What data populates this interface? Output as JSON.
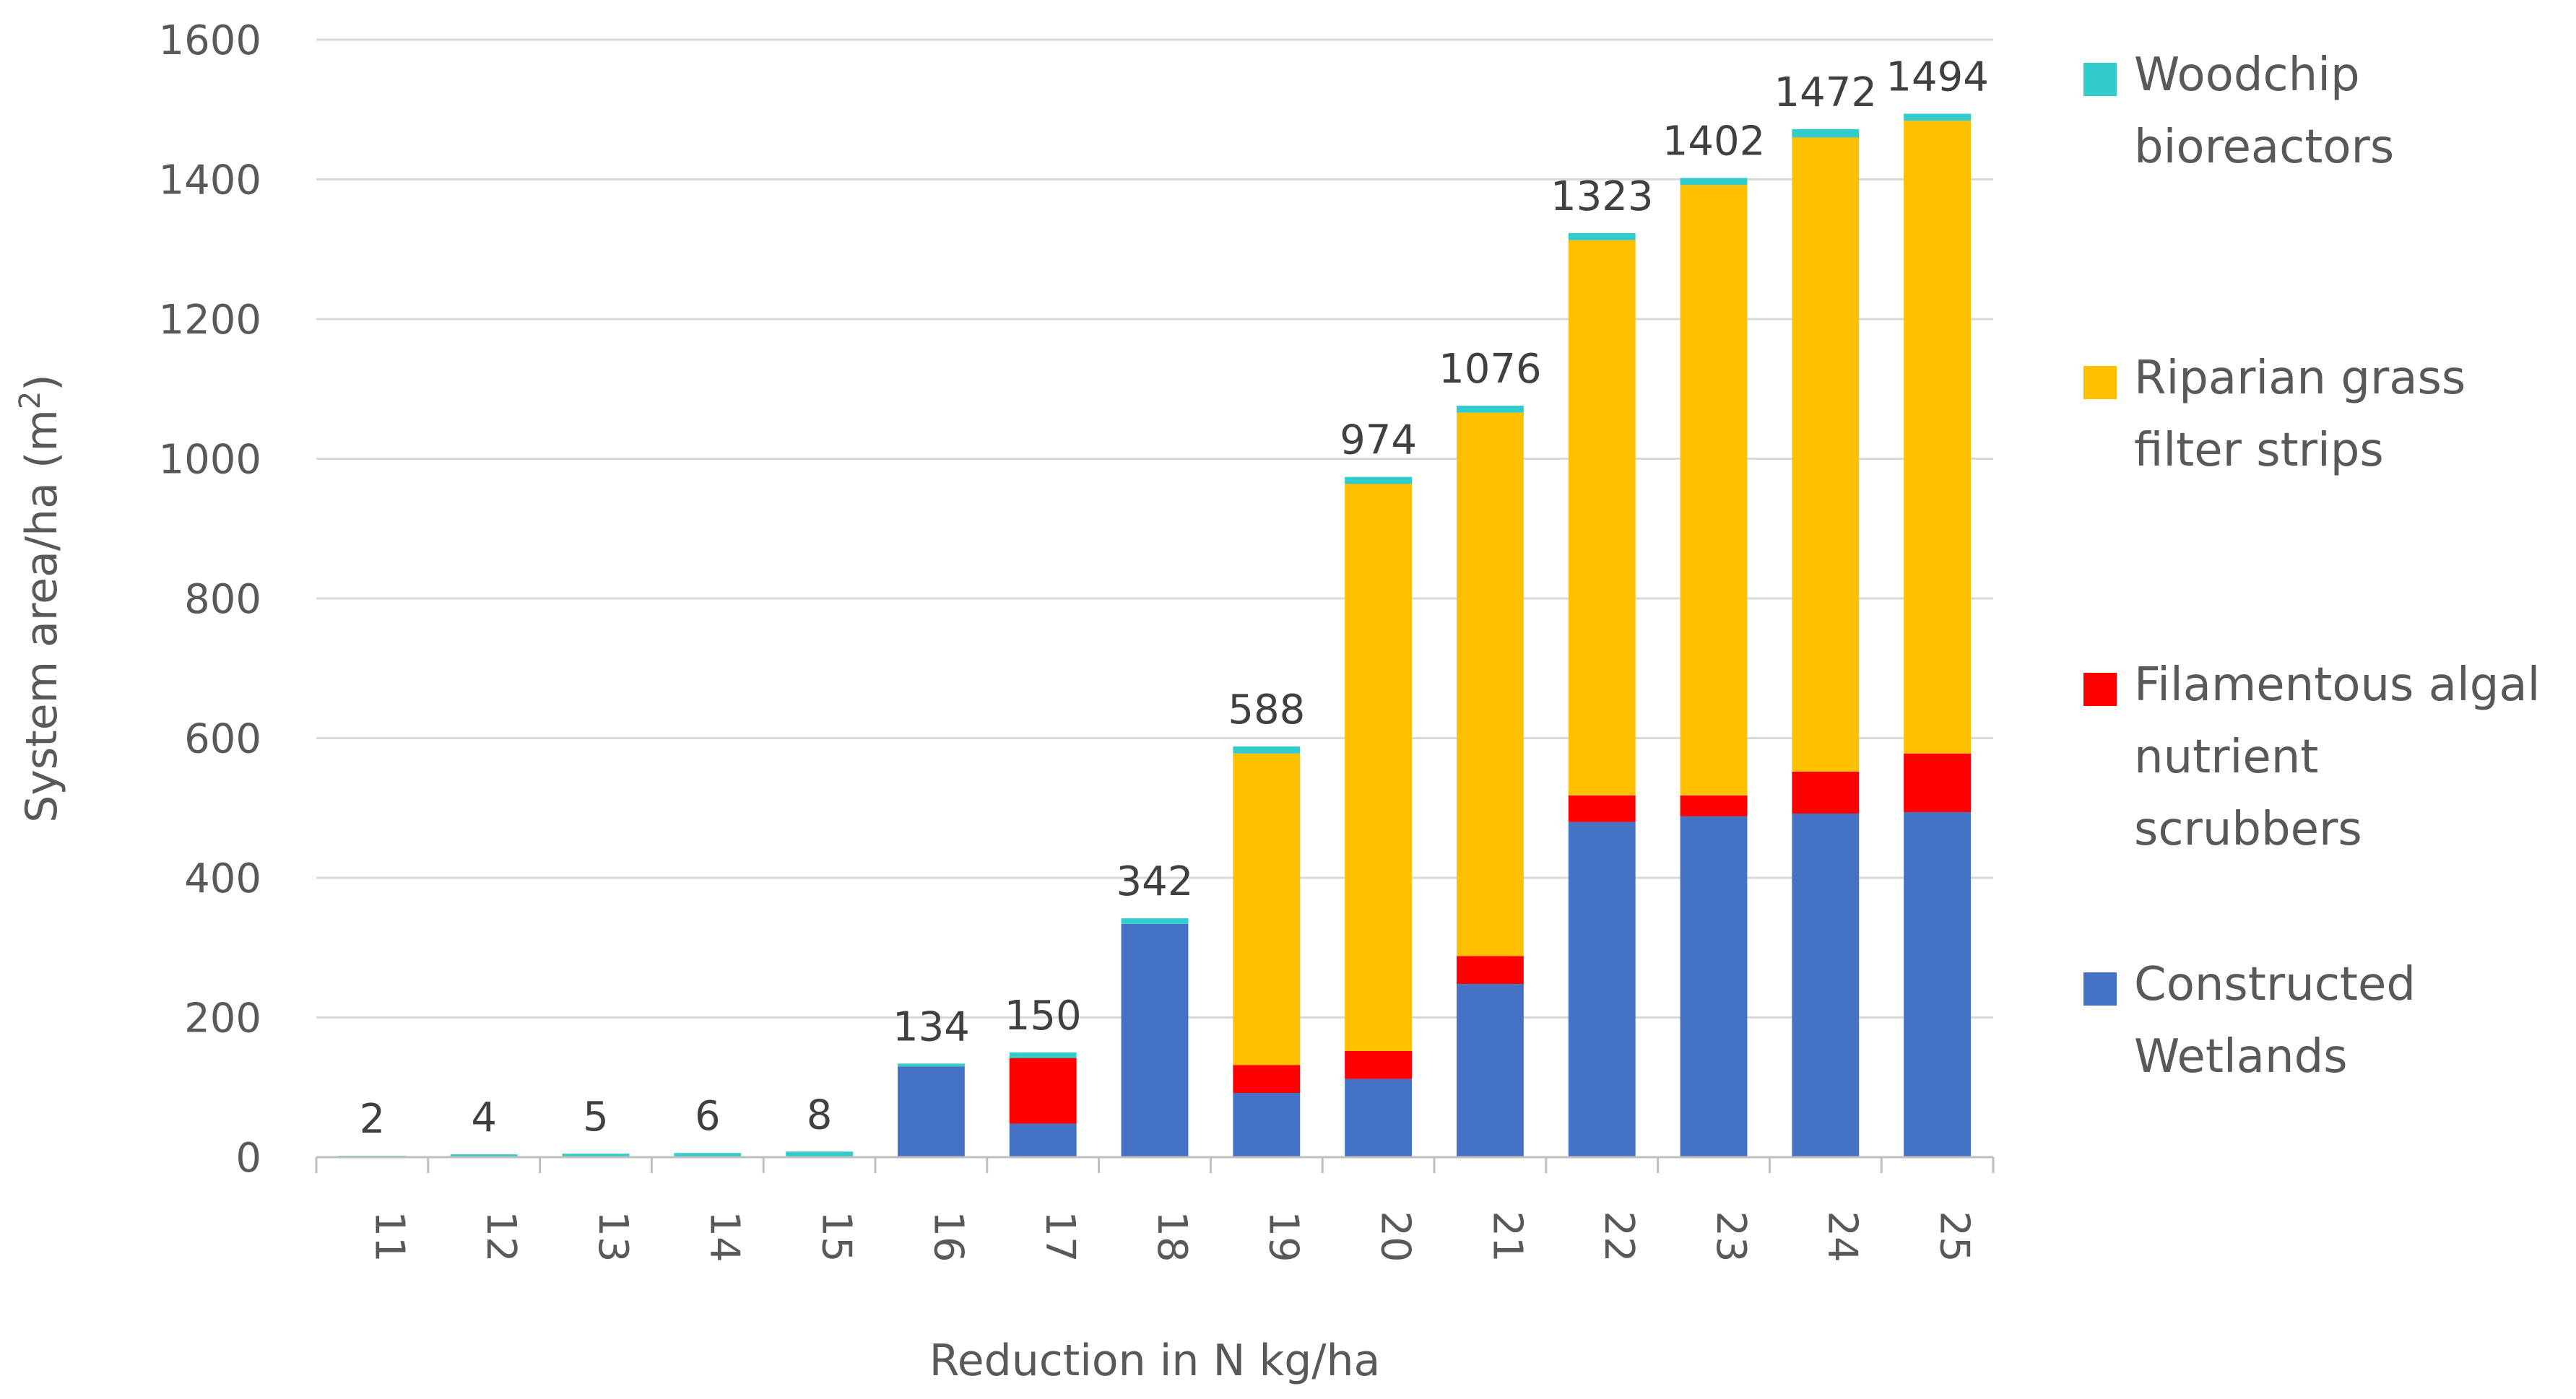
{
  "chart_data": {
    "type": "bar",
    "stacked": true,
    "title": "",
    "xlabel": "Reduction in N kg/ha",
    "ylabel": "System area/ha (m²)",
    "ylabel_parts": {
      "main": "System area/ha (m",
      "sup": "2",
      "end": ")"
    },
    "ylim": [
      0,
      1600
    ],
    "yticks": [
      0,
      200,
      400,
      600,
      800,
      1000,
      1200,
      1400,
      1600
    ],
    "ytick_labels": [
      "0",
      "200",
      "400",
      "600",
      "800",
      "1000",
      "1200",
      "1400",
      "1600"
    ],
    "grid": true,
    "legend_position": "right",
    "categories": [
      "11",
      "12",
      "13",
      "14",
      "15",
      "16",
      "17",
      "18",
      "19",
      "20",
      "21",
      "22",
      "23",
      "24",
      "25"
    ],
    "series": [
      {
        "name": "Constructed Wetlands",
        "legend_lines": [
          "Constructed",
          "Wetlands"
        ],
        "color": "#4472c4",
        "values": [
          0,
          0,
          0,
          0,
          0,
          130,
          48,
          334,
          92,
          112,
          248,
          480,
          488,
          492,
          494
        ]
      },
      {
        "name": "Filamentous algal nutrient scrubbers",
        "legend_lines": [
          "Filamentous algal",
          "nutrient",
          "scrubbers"
        ],
        "color": "#ff0000",
        "values": [
          0,
          0,
          0,
          0,
          0,
          0,
          94,
          0,
          40,
          40,
          40,
          38,
          30,
          60,
          84
        ]
      },
      {
        "name": "Riparian grass filter strips",
        "legend_lines": [
          "Riparian grass",
          "filter strips"
        ],
        "color": "#ffc000",
        "values": [
          0,
          0,
          0,
          0,
          0,
          0,
          0,
          0,
          446,
          812,
          778,
          795,
          874,
          908,
          906
        ]
      },
      {
        "name": "Woodchip bioreactors",
        "legend_lines": [
          "Woodchip",
          "bioreactors"
        ],
        "color": "#33cccc",
        "values": [
          2,
          4,
          5,
          6,
          8,
          4,
          8,
          8,
          10,
          10,
          10,
          10,
          10,
          12,
          10
        ]
      }
    ],
    "totals": [
      2,
      4,
      5,
      6,
      8,
      134,
      150,
      342,
      588,
      974,
      1076,
      1323,
      1402,
      1472,
      1494
    ],
    "total_labels": [
      "2",
      "4",
      "5",
      "6",
      "8",
      "134",
      "150",
      "342",
      "588",
      "974",
      "1076",
      "1323",
      "1402",
      "1472",
      "1494"
    ],
    "legend_order": [
      "Woodchip bioreactors",
      "Riparian grass filter strips",
      "Filamentous algal nutrient scrubbers",
      "Constructed Wetlands"
    ]
  }
}
